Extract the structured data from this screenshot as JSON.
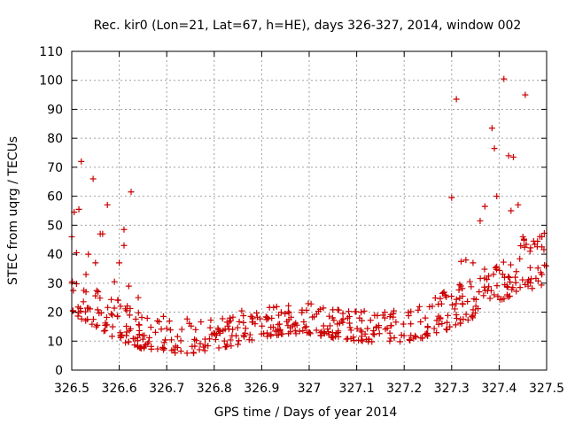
{
  "chart_data": {
    "type": "scatter",
    "title": "Rec. kir0 (Lon=21, Lat=67, h=HE), days 326-327, 2014, window 002",
    "xlabel": "GPS time / Days of year 2014",
    "ylabel": "STEC from uqrg / TECUs",
    "xlim": [
      326.5,
      327.5
    ],
    "ylim": [
      0,
      110
    ],
    "xticks": [
      326.5,
      326.6,
      326.7,
      326.8,
      326.9,
      327,
      327.1,
      327.2,
      327.3,
      327.4,
      327.5
    ],
    "xtick_labels": [
      "326.5",
      "326.6",
      "326.7",
      "326.8",
      "326.9",
      "327",
      "327.1",
      "327.2",
      "327.3",
      "327.4",
      "327.5"
    ],
    "yticks": [
      0,
      10,
      20,
      30,
      40,
      50,
      60,
      70,
      80,
      90,
      100,
      110
    ],
    "ytick_labels": [
      "0",
      "10",
      "20",
      "30",
      "40",
      "50",
      "60",
      "70",
      "80",
      "90",
      "100",
      "110"
    ],
    "grid": true,
    "marker": "+",
    "marker_color": "#cc0000",
    "series": [
      {
        "name": "STEC",
        "points": [
          [
            326.5,
            46
          ],
          [
            326.5,
            30
          ],
          [
            326.505,
            54.5
          ],
          [
            326.51,
            40.5
          ],
          [
            326.515,
            55.5
          ],
          [
            326.52,
            72
          ],
          [
            326.53,
            33
          ],
          [
            326.535,
            40
          ],
          [
            326.545,
            66
          ],
          [
            326.55,
            37
          ],
          [
            326.56,
            47
          ],
          [
            326.565,
            47
          ],
          [
            326.575,
            57
          ],
          [
            326.59,
            30.5
          ],
          [
            326.6,
            37
          ],
          [
            326.61,
            48.5
          ],
          [
            326.61,
            43
          ],
          [
            326.62,
            29
          ],
          [
            326.625,
            61.5
          ],
          [
            326.64,
            25
          ],
          [
            327.3,
            59.5
          ],
          [
            327.31,
            93.5
          ],
          [
            327.32,
            37.5
          ],
          [
            327.33,
            38
          ],
          [
            327.345,
            37
          ],
          [
            327.36,
            51.5
          ],
          [
            327.37,
            56.5
          ],
          [
            327.385,
            83.5
          ],
          [
            327.39,
            76.5
          ],
          [
            327.395,
            60
          ],
          [
            327.41,
            100.5
          ],
          [
            327.42,
            74
          ],
          [
            327.43,
            73.5
          ],
          [
            327.425,
            55
          ],
          [
            327.44,
            57
          ],
          [
            327.455,
            95
          ],
          [
            327.45,
            46
          ],
          [
            327.465,
            41
          ],
          [
            327.49,
            46
          ],
          [
            327.49,
            33
          ]
        ],
        "envelope": [
          [
            326.5,
            24
          ],
          [
            326.55,
            19
          ],
          [
            326.6,
            14
          ],
          [
            326.65,
            11
          ],
          [
            326.7,
            9.5
          ],
          [
            326.75,
            9
          ],
          [
            326.8,
            10
          ],
          [
            326.85,
            12
          ],
          [
            326.9,
            14.5
          ],
          [
            326.95,
            15.5
          ],
          [
            327.0,
            15.5
          ],
          [
            327.05,
            14
          ],
          [
            327.1,
            13
          ],
          [
            327.15,
            12.5
          ],
          [
            327.2,
            13
          ],
          [
            327.25,
            15
          ],
          [
            327.3,
            18.5
          ],
          [
            327.35,
            23
          ],
          [
            327.4,
            28.5
          ],
          [
            327.45,
            33
          ],
          [
            327.5,
            34
          ]
        ],
        "spread": [
          [
            326.5,
            10
          ],
          [
            326.6,
            9
          ],
          [
            326.7,
            8
          ],
          [
            326.8,
            7
          ],
          [
            326.9,
            7
          ],
          [
            327.0,
            6.5
          ],
          [
            327.1,
            6.5
          ],
          [
            327.2,
            7
          ],
          [
            327.3,
            9
          ],
          [
            327.4,
            11
          ],
          [
            327.5,
            12
          ]
        ],
        "n_scatter_points": 520
      }
    ]
  }
}
